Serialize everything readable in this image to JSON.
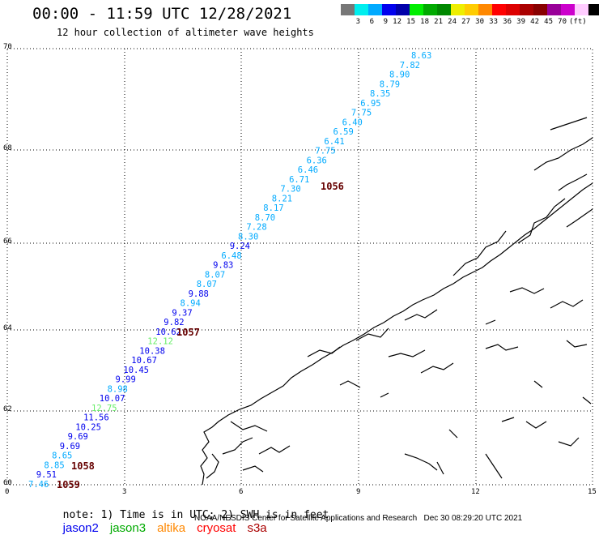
{
  "header": {
    "title": "00:00 - 11:59 UTC 12/28/2021",
    "subtitle": "12 hour collection of altimeter wave heights"
  },
  "legend": {
    "unit": "(ft)",
    "colors": [
      "#777777",
      "#00eeee",
      "#00aaff",
      "#0000ee",
      "#0000aa",
      "#00ee00",
      "#00aa00",
      "#008800",
      "#eeee00",
      "#ffcc00",
      "#ff8800",
      "#ff0000",
      "#dd0000",
      "#aa0000",
      "#880000",
      "#990099",
      "#cc00cc",
      "#ffccff",
      "#000000"
    ],
    "labels": [
      "3",
      "6",
      "9",
      "12",
      "15",
      "18",
      "21",
      "24",
      "27",
      "30",
      "33",
      "36",
      "39",
      "42",
      "45",
      "70"
    ]
  },
  "axes": {
    "y_ticks": [
      "70",
      "68",
      "66",
      "64",
      "62",
      "60"
    ],
    "x_ticks": [
      "0",
      "3",
      "6",
      "9",
      "12",
      "15"
    ]
  },
  "orbits": [
    "1056",
    "1057",
    "1058",
    "1059"
  ],
  "track": [
    {
      "v": "8.63",
      "c": "#00aaff"
    },
    {
      "v": "7.82",
      "c": "#00aaff"
    },
    {
      "v": "8.90",
      "c": "#00aaff"
    },
    {
      "v": "8.79",
      "c": "#00aaff"
    },
    {
      "v": "8.35",
      "c": "#00aaff"
    },
    {
      "v": "6.95",
      "c": "#00aaff"
    },
    {
      "v": "7.75",
      "c": "#00aaff"
    },
    {
      "v": "6.40",
      "c": "#00aaff"
    },
    {
      "v": "6.59",
      "c": "#00aaff"
    },
    {
      "v": "6.41",
      "c": "#00aaff"
    },
    {
      "v": "7.75",
      "c": "#00aaff"
    },
    {
      "v": "6.36",
      "c": "#00aaff"
    },
    {
      "v": "6.46",
      "c": "#00aaff"
    },
    {
      "v": "6.71",
      "c": "#00aaff"
    },
    {
      "v": "7.30",
      "c": "#00aaff"
    },
    {
      "v": "8.21",
      "c": "#00aaff"
    },
    {
      "v": "8.17",
      "c": "#00aaff"
    },
    {
      "v": "8.70",
      "c": "#00aaff"
    },
    {
      "v": "7.28",
      "c": "#00aaff"
    },
    {
      "v": "8.30",
      "c": "#00aaff"
    },
    {
      "v": "9.24",
      "c": "#0000ee"
    },
    {
      "v": "6.48",
      "c": "#00aaff"
    },
    {
      "v": "9.83",
      "c": "#0000ee"
    },
    {
      "v": "8.07",
      "c": "#00aaff"
    },
    {
      "v": "8.07",
      "c": "#00aaff"
    },
    {
      "v": "9.88",
      "c": "#0000ee"
    },
    {
      "v": "8.94",
      "c": "#00aaff"
    },
    {
      "v": "9.37",
      "c": "#0000ee"
    },
    {
      "v": "9.82",
      "c": "#0000ee"
    },
    {
      "v": "10.62",
      "c": "#0000ee"
    },
    {
      "v": "12.12",
      "c": "#66ee66"
    },
    {
      "v": "10.38",
      "c": "#0000ee"
    },
    {
      "v": "10.67",
      "c": "#0000ee"
    },
    {
      "v": "10.45",
      "c": "#0000ee"
    },
    {
      "v": "9.99",
      "c": "#0000ee"
    },
    {
      "v": "8.98",
      "c": "#00aaff"
    },
    {
      "v": "10.07",
      "c": "#0000ee"
    },
    {
      "v": "12.75",
      "c": "#66ee66"
    },
    {
      "v": "11.56",
      "c": "#0000ee"
    },
    {
      "v": "10.25",
      "c": "#0000ee"
    },
    {
      "v": "9.69",
      "c": "#0000ee"
    },
    {
      "v": "9.69",
      "c": "#0000ee"
    },
    {
      "v": "8.65",
      "c": "#00aaff"
    },
    {
      "v": "8.85",
      "c": "#00aaff"
    },
    {
      "v": "9.51",
      "c": "#0000ee"
    },
    {
      "v": "7.46",
      "c": "#00aaff"
    }
  ],
  "note": {
    "text": "note: 1) Time is in UTC; 2) SWH is in feet",
    "satellites": [
      {
        "name": "jason2",
        "color": "#0000ee"
      },
      {
        "name": "jason3",
        "color": "#00aa00"
      },
      {
        "name": "altika",
        "color": "#ff8800"
      },
      {
        "name": "cryosat",
        "color": "#ff0000"
      },
      {
        "name": "s3a",
        "color": "#aa0000"
      }
    ]
  },
  "footer": {
    "credit": "NOAA/NESDIS Center for Satellite Applications and Research",
    "timestamp": "Dec 30 08:29:20 UTC 2021"
  }
}
